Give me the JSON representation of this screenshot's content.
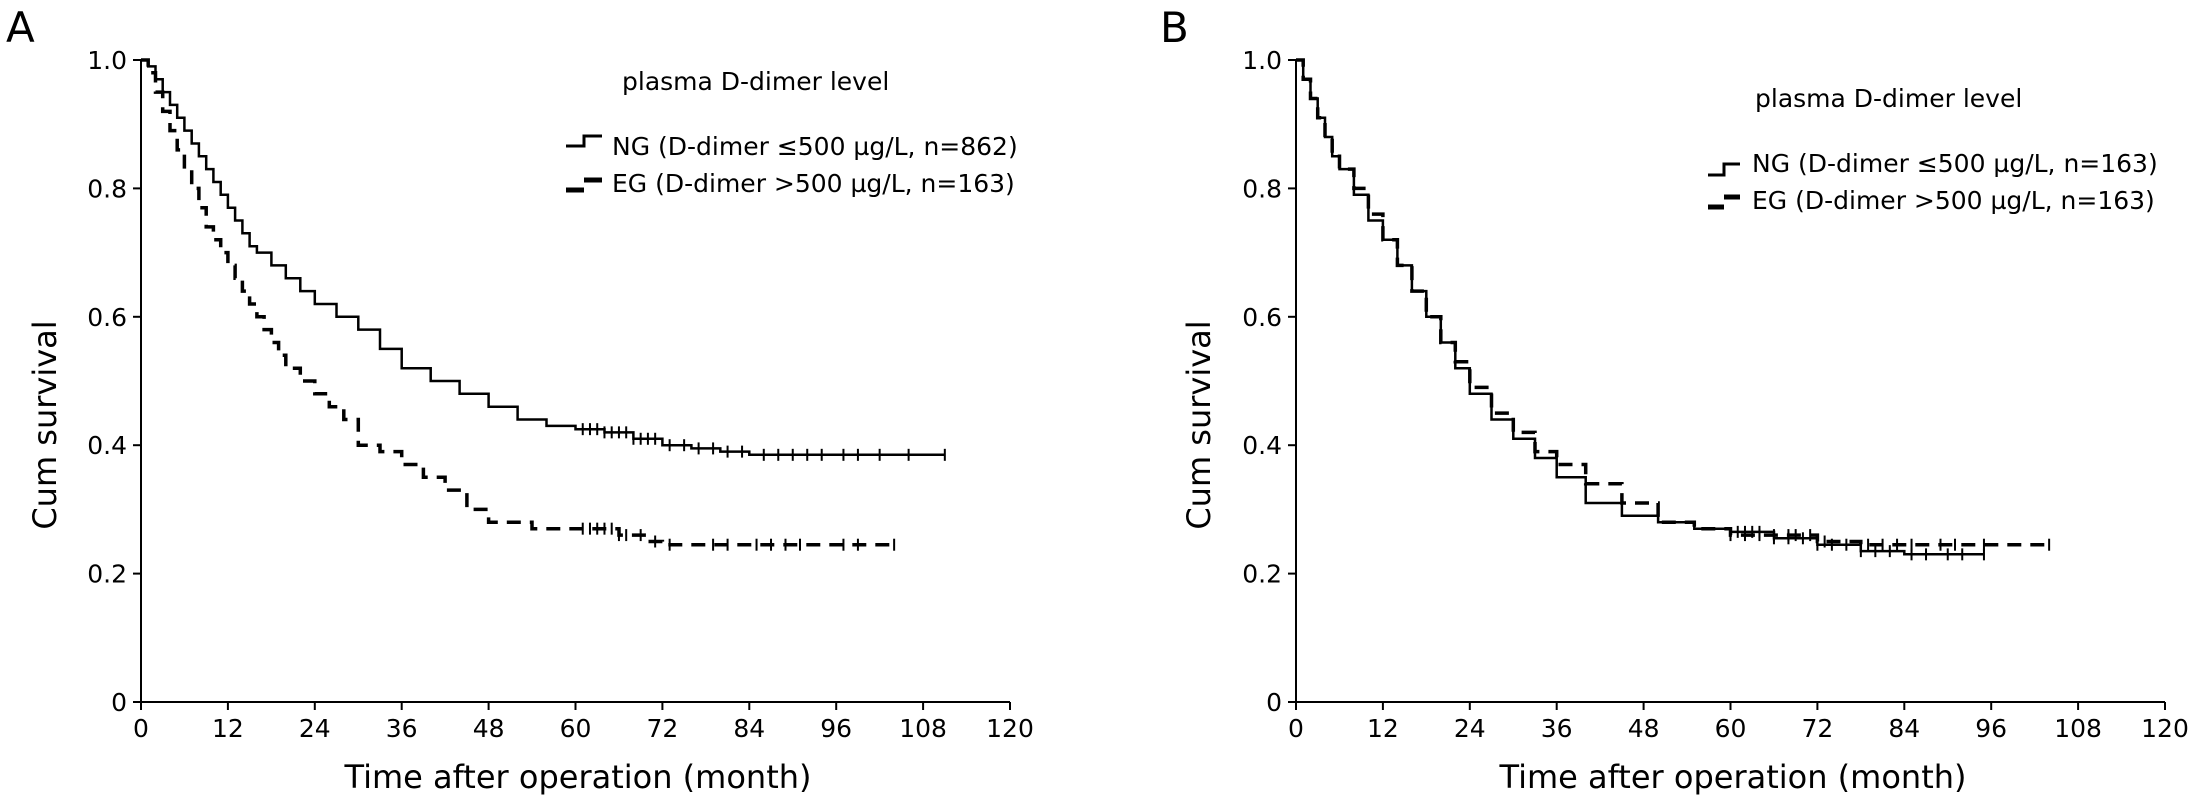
{
  "chart_data": [
    {
      "panel": "A",
      "type": "line",
      "subtype": "kaplan-meier step",
      "xlabel": "Time after operation (month)",
      "ylabel": "Cum survival",
      "xlim": [
        0,
        120
      ],
      "ylim": [
        0,
        1.0
      ],
      "xticks": [
        0,
        12,
        24,
        36,
        48,
        60,
        72,
        84,
        96,
        108,
        120
      ],
      "yticks": [
        0,
        0.2,
        0.4,
        0.6,
        0.8,
        1.0
      ],
      "ytick_labels": [
        "0",
        "0.2",
        "0.4",
        "0.6",
        "0.8",
        "1.0"
      ],
      "grid": false,
      "legend_title": "plasma D-dimer level",
      "legend_position": "top-right",
      "series": [
        {
          "name": "NG (D-dimer ≤500 µg/L, n=862)",
          "style": "solid",
          "color": "#000000",
          "x": [
            0,
            1,
            2,
            3,
            4,
            5,
            6,
            7,
            8,
            9,
            10,
            11,
            12,
            13,
            14,
            15,
            16,
            18,
            20,
            22,
            24,
            27,
            30,
            33,
            36,
            40,
            44,
            48,
            52,
            56,
            60,
            64,
            68,
            72,
            76,
            80,
            84,
            90,
            96,
            104,
            111
          ],
          "y": [
            1.0,
            0.99,
            0.97,
            0.95,
            0.93,
            0.91,
            0.89,
            0.87,
            0.85,
            0.83,
            0.81,
            0.79,
            0.77,
            0.75,
            0.73,
            0.71,
            0.7,
            0.68,
            0.66,
            0.64,
            0.62,
            0.6,
            0.58,
            0.55,
            0.52,
            0.5,
            0.48,
            0.46,
            0.44,
            0.43,
            0.425,
            0.42,
            0.41,
            0.4,
            0.395,
            0.39,
            0.385,
            0.385,
            0.385,
            0.385,
            0.385
          ],
          "censor_x": [
            61,
            62,
            63,
            64,
            65,
            66,
            67,
            68,
            69,
            70,
            71,
            73,
            75,
            77,
            79,
            81,
            83,
            86,
            88,
            90,
            92,
            94,
            97,
            99,
            102,
            106,
            111
          ]
        },
        {
          "name": "EG (D-dimer >500 µg/L, n=163)",
          "style": "dashed",
          "color": "#000000",
          "x": [
            0,
            1,
            2,
            3,
            4,
            5,
            6,
            7,
            8,
            9,
            10,
            11,
            12,
            13,
            14,
            15,
            16,
            17,
            18,
            19,
            20,
            22,
            24,
            26,
            28,
            30,
            33,
            36,
            39,
            42,
            45,
            48,
            54,
            60,
            66,
            70,
            72,
            78,
            104
          ],
          "y": [
            1.0,
            0.98,
            0.95,
            0.92,
            0.89,
            0.86,
            0.83,
            0.8,
            0.77,
            0.74,
            0.72,
            0.7,
            0.68,
            0.66,
            0.64,
            0.62,
            0.6,
            0.58,
            0.56,
            0.54,
            0.52,
            0.5,
            0.48,
            0.46,
            0.44,
            0.4,
            0.39,
            0.37,
            0.35,
            0.33,
            0.3,
            0.28,
            0.27,
            0.27,
            0.26,
            0.25,
            0.245,
            0.245,
            0.245
          ],
          "censor_x": [
            61,
            62,
            63,
            64,
            65,
            66,
            67,
            69,
            71,
            73,
            79,
            81,
            85,
            87,
            89,
            91,
            97,
            99,
            104
          ]
        }
      ]
    },
    {
      "panel": "B",
      "type": "line",
      "subtype": "kaplan-meier step",
      "xlabel": "Time after operation (month)",
      "ylabel": "Cum survival",
      "xlim": [
        0,
        120
      ],
      "ylim": [
        0,
        1.0
      ],
      "xticks": [
        0,
        12,
        24,
        36,
        48,
        60,
        72,
        84,
        96,
        108,
        120
      ],
      "yticks": [
        0,
        0.2,
        0.4,
        0.6,
        0.8,
        1.0
      ],
      "ytick_labels": [
        "0",
        "0.2",
        "0.4",
        "0.6",
        "0.8",
        "1.0"
      ],
      "grid": false,
      "legend_title": "plasma D-dimer level",
      "legend_position": "top-right",
      "series": [
        {
          "name": "NG (D-dimer ≤500 µg/L, n=163)",
          "style": "solid",
          "color": "#000000",
          "x": [
            0,
            1,
            2,
            3,
            4,
            5,
            6,
            8,
            10,
            12,
            14,
            16,
            18,
            20,
            22,
            24,
            27,
            30,
            33,
            36,
            40,
            45,
            50,
            55,
            60,
            66,
            72,
            78,
            84,
            95
          ],
          "y": [
            1.0,
            0.97,
            0.94,
            0.91,
            0.88,
            0.85,
            0.83,
            0.79,
            0.75,
            0.72,
            0.68,
            0.64,
            0.6,
            0.56,
            0.52,
            0.48,
            0.44,
            0.41,
            0.38,
            0.35,
            0.31,
            0.29,
            0.28,
            0.27,
            0.265,
            0.255,
            0.245,
            0.235,
            0.23,
            0.23
          ],
          "censor_x": [
            61,
            62,
            63,
            64,
            66,
            68,
            70,
            72,
            74,
            76,
            78,
            80,
            82,
            85,
            87,
            90,
            92,
            95
          ]
        },
        {
          "name": "EG (D-dimer >500 µg/L, n=163)",
          "style": "dashed",
          "color": "#000000",
          "x": [
            0,
            1,
            2,
            3,
            4,
            5,
            6,
            8,
            10,
            12,
            14,
            16,
            18,
            20,
            22,
            24,
            27,
            30,
            33,
            36,
            40,
            45,
            50,
            55,
            60,
            66,
            72,
            78,
            104
          ],
          "y": [
            1.0,
            0.97,
            0.94,
            0.91,
            0.88,
            0.85,
            0.83,
            0.8,
            0.76,
            0.72,
            0.68,
            0.64,
            0.6,
            0.56,
            0.53,
            0.49,
            0.45,
            0.42,
            0.39,
            0.37,
            0.34,
            0.31,
            0.28,
            0.27,
            0.26,
            0.26,
            0.25,
            0.245,
            0.245
          ],
          "censor_x": [
            60,
            62,
            64,
            66,
            68,
            69,
            71,
            73,
            79,
            81,
            83,
            85,
            89,
            91,
            95,
            104
          ]
        }
      ]
    }
  ]
}
